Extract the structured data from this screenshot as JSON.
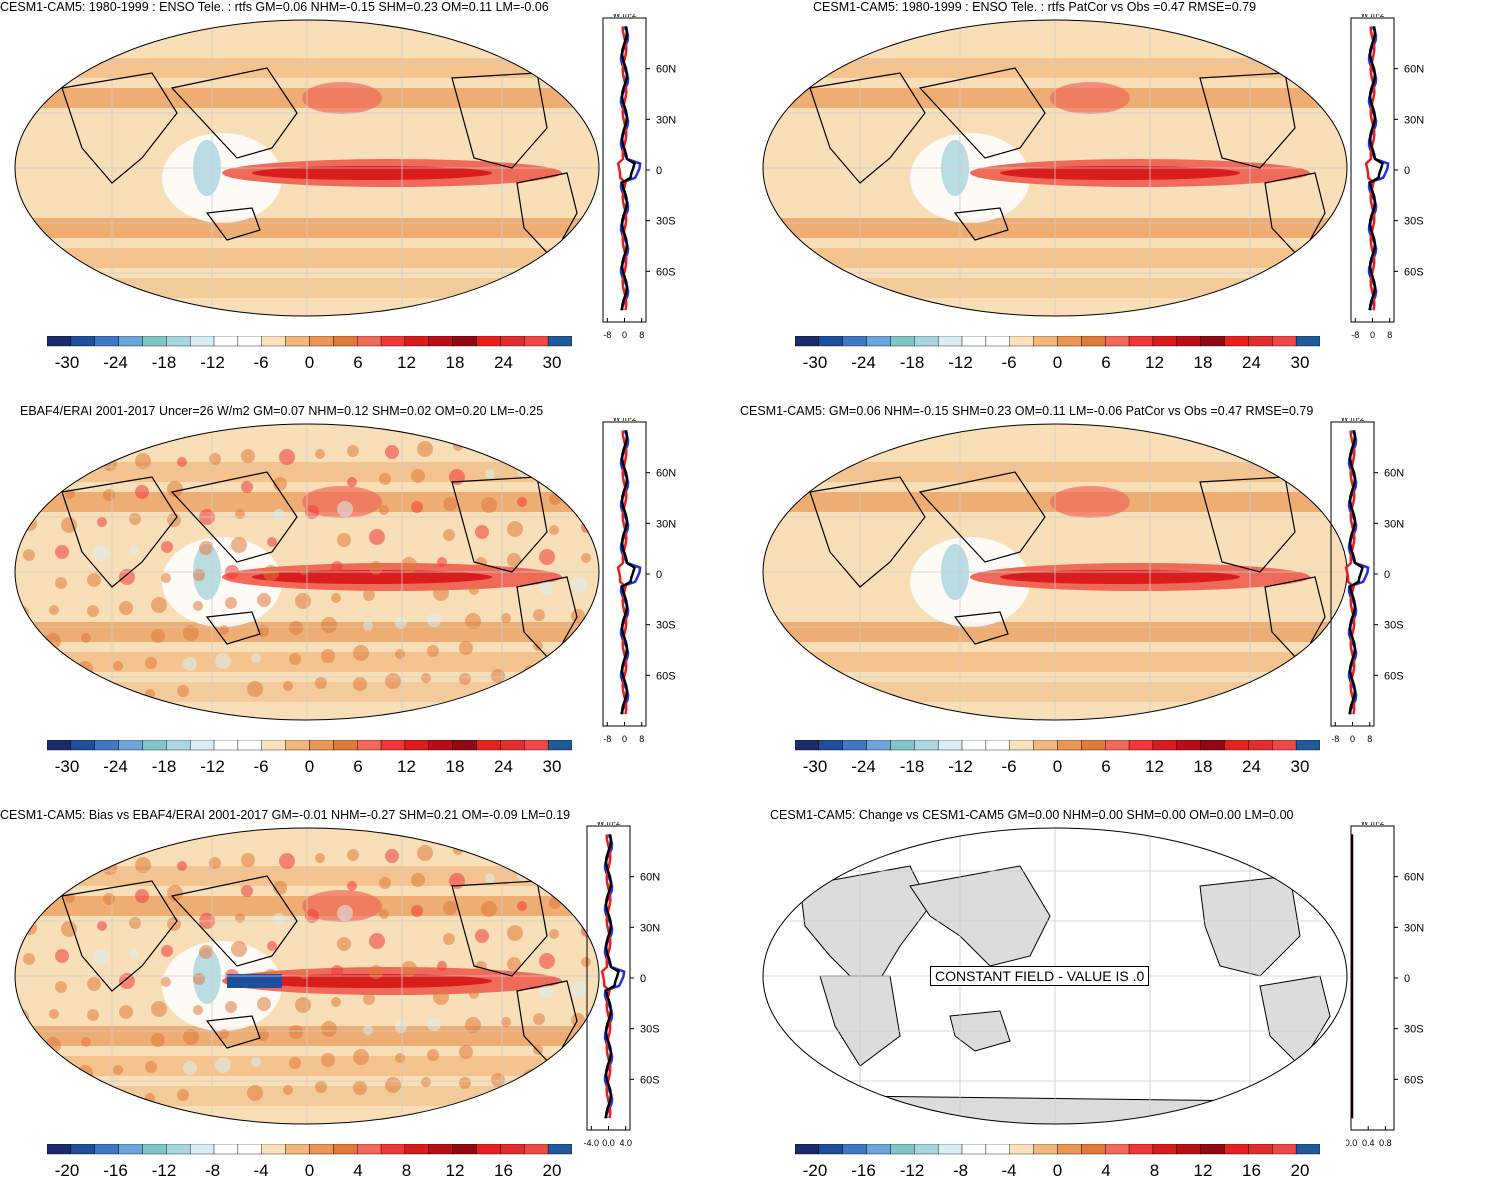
{
  "panels": [
    {
      "id": "p1",
      "title": "CESM1-CAM5: 1980-1999 : ENSO Tele. : rtfs GM=0.06 NHM=-0.15 SHM=0.23 OM=0.11 LM=-0.06",
      "colorbar": {
        "labels": [
          "-30",
          "-24",
          "-18",
          "-12",
          "-6",
          "0",
          "6",
          "12",
          "18",
          "24",
          "30"
        ]
      },
      "profile": {
        "unit": "W m-2",
        "xticks": [
          "-8",
          "0",
          "8"
        ],
        "xrange": [
          -10,
          10
        ],
        "lat_labels": [
          "60N",
          "30N",
          "0",
          "30S",
          "60S"
        ]
      }
    },
    {
      "id": "p2",
      "title": "CESM1-CAM5: 1980-1999 : ENSO Tele. : rtfs PatCor vs Obs =0.47 RMSE=0.79",
      "colorbar": {
        "labels": [
          "-30",
          "-24",
          "-18",
          "-12",
          "-6",
          "0",
          "6",
          "12",
          "18",
          "24",
          "30"
        ]
      },
      "profile": {
        "unit": "W m-2",
        "xticks": [
          "-8",
          "0",
          "8"
        ],
        "xrange": [
          -10,
          10
        ],
        "lat_labels": [
          "60N",
          "30N",
          "0",
          "30S",
          "60S"
        ]
      }
    },
    {
      "id": "p3",
      "title": "EBAF4/ERAI 2001-2017 Uncer=26 W/m2 GM=0.07 NHM=0.12 SHM=0.02 OM=0.20 LM=-0.25",
      "colorbar": {
        "labels": [
          "-30",
          "-24",
          "-18",
          "-12",
          "-6",
          "0",
          "6",
          "12",
          "18",
          "24",
          "30"
        ]
      },
      "profile": {
        "unit": "W m-2",
        "xticks": [
          "-8",
          "0",
          "8"
        ],
        "xrange": [
          -10,
          10
        ],
        "lat_labels": [
          "60N",
          "30N",
          "0",
          "30S",
          "60S"
        ]
      }
    },
    {
      "id": "p4",
      "title": "CESM1-CAM5: GM=0.06 NHM=-0.15 SHM=0.23 OM=0.11 LM=-0.06 PatCor vs Obs =0.47 RMSE=0.79",
      "colorbar": {
        "labels": [
          "-30",
          "-24",
          "-18",
          "-12",
          "-6",
          "0",
          "6",
          "12",
          "18",
          "24",
          "30"
        ]
      },
      "profile": {
        "unit": "W m-2",
        "xticks": [
          "-8",
          "0",
          "8"
        ],
        "xrange": [
          -10,
          10
        ],
        "lat_labels": [
          "60N",
          "30N",
          "0",
          "30S",
          "60S"
        ]
      }
    },
    {
      "id": "p5",
      "title": "CESM1-CAM5: Bias vs EBAF4/ERAI 2001-2017 GM=-0.01 NHM=-0.27 SHM=0.21 OM=-0.09 LM=0.19",
      "colorbar": {
        "labels": [
          "-20",
          "-16",
          "-12",
          "-8",
          "-4",
          "0",
          "4",
          "8",
          "12",
          "16",
          "20"
        ]
      },
      "profile": {
        "unit": "W m-2",
        "xticks": [
          "-4.0",
          "0.0",
          "4.0"
        ],
        "xrange": [
          -5,
          5
        ],
        "lat_labels": [
          "60N",
          "30N",
          "0",
          "30S",
          "60S"
        ]
      }
    },
    {
      "id": "p6",
      "title": "CESM1-CAM5: Change vs CESM1-CAM5 GM=0.00 NHM=0.00 SHM=0.00 OM=0.00 LM=0.00",
      "colorbar": {
        "labels": [
          "-20",
          "-16",
          "-12",
          "-8",
          "-4",
          "0",
          "4",
          "8",
          "12",
          "16",
          "20"
        ]
      },
      "profile": {
        "unit": "W m-2",
        "xticks": [
          "0.0",
          "0.4",
          "0.8"
        ],
        "xrange": [
          0,
          1
        ],
        "lat_labels": [
          "60N",
          "30N",
          "0",
          "30S",
          "60S"
        ]
      },
      "constant_label": "CONSTANT FIELD - VALUE IS .0"
    }
  ],
  "colors": {
    "palette": [
      "#1b2a6b",
      "#1f4f9c",
      "#3f78c4",
      "#6aa6d9",
      "#7fc6c9",
      "#a9d6e0",
      "#d8eef4",
      "#ffffff",
      "#ffffff",
      "#fbe2bc",
      "#f3b67b",
      "#ea9755",
      "#e07a3a",
      "#f06a5a",
      "#f03838",
      "#d91c1c",
      "#b80f17",
      "#8f0a12",
      "#e6201e",
      "#e02d2d",
      "#f04848",
      "#1f5a9a"
    ],
    "map_fill": "#f9dfb8",
    "land_gray": "#dcdcdc",
    "profile_blue": "#1e2fe8",
    "profile_red": "#e81e1e",
    "profile_black": "#000000"
  }
}
